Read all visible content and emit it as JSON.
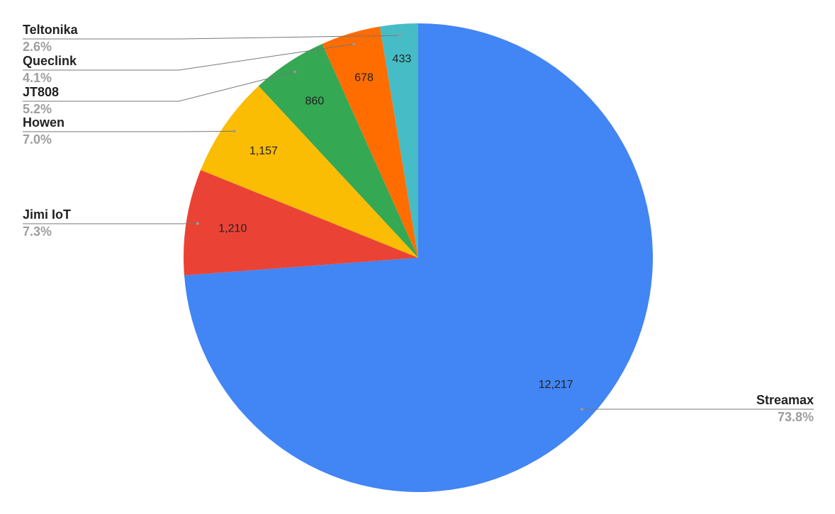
{
  "chart_data": {
    "type": "pie",
    "categories": [
      "Streamax",
      "Jimi IoT",
      "Howen",
      "JT808",
      "Queclink",
      "Teltonika"
    ],
    "values": [
      12217,
      1210,
      1157,
      860,
      678,
      433
    ],
    "value_labels": [
      "12,217",
      "1,210",
      "1,157",
      "860",
      "678",
      "433"
    ],
    "percent_labels": [
      "73.8%",
      "7.3%",
      "7.0%",
      "5.2%",
      "4.1%",
      "2.6%"
    ],
    "colors": [
      "#4285f4",
      "#ea4335",
      "#fbbc04",
      "#34a853",
      "#ff6d01",
      "#46bdc6"
    ]
  }
}
